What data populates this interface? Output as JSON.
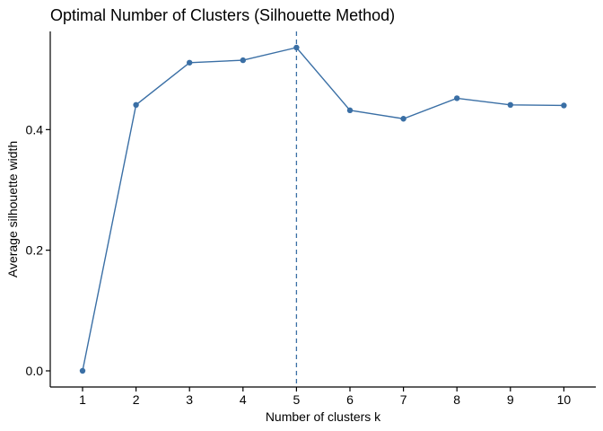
{
  "chart_data": {
    "type": "line",
    "title": "Optimal Number of Clusters (Silhouette Method)",
    "xlabel": "Number of clusters k",
    "ylabel": "Average silhouette width",
    "x": [
      1,
      2,
      3,
      4,
      5,
      6,
      7,
      8,
      9,
      10
    ],
    "x_tick_labels": [
      "1",
      "2",
      "3",
      "4",
      "5",
      "6",
      "7",
      "8",
      "9",
      "10"
    ],
    "series": [
      {
        "values": [
          0.0,
          0.441,
          0.511,
          0.515,
          0.536,
          0.432,
          0.418,
          0.452,
          0.441,
          0.44
        ]
      }
    ],
    "y_ticks": [
      0.0,
      0.2,
      0.4
    ],
    "y_tick_labels": [
      "0.0",
      "0.2",
      "0.4"
    ],
    "ylim": [
      -0.0268,
      0.5628
    ],
    "optimal_k": 5,
    "grid": false,
    "colors": {
      "line": "#3A6FA5",
      "point": "#3A6FA5",
      "reference_line": "#3A6FA5",
      "axis": "#000000"
    }
  }
}
